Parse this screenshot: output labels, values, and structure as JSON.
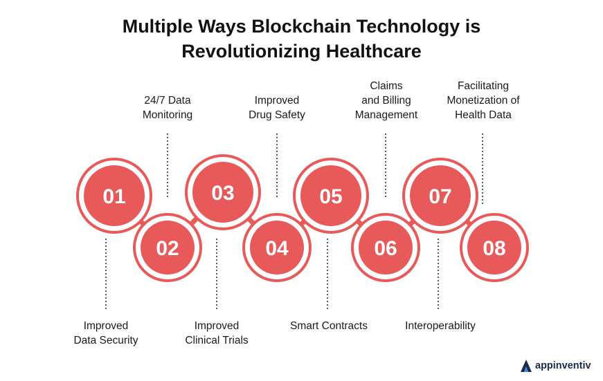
{
  "title": {
    "line1": "Multiple Ways Blockchain Technology is",
    "line2": "Revolutionizing Healthcare"
  },
  "steps": [
    {
      "number": "01",
      "label": [
        "Improved",
        "Data Security"
      ]
    },
    {
      "number": "02",
      "label": [
        "24/7 Data",
        "Monitoring"
      ]
    },
    {
      "number": "03",
      "label": [
        "Improved",
        "Clinical Trials"
      ]
    },
    {
      "number": "04",
      "label": [
        "Improved",
        "Drug Safety"
      ]
    },
    {
      "number": "05",
      "label": [
        "Smart Contracts"
      ]
    },
    {
      "number": "06",
      "label": [
        "Claims",
        "and Billing",
        "Management"
      ]
    },
    {
      "number": "07",
      "label": [
        "Interoperability"
      ]
    },
    {
      "number": "08",
      "label": [
        "Facilitating",
        "Monetization of",
        "Health Data"
      ]
    }
  ],
  "colors": {
    "circle_fill": "#e85a5a",
    "circle_ring": "#e85a5a",
    "connector": "#e85a5a",
    "dotted_line": "#555555",
    "logo": "#1b2a4a"
  },
  "logo": {
    "text": "appinventiv",
    "icon": "appinventiv-logo-icon"
  }
}
